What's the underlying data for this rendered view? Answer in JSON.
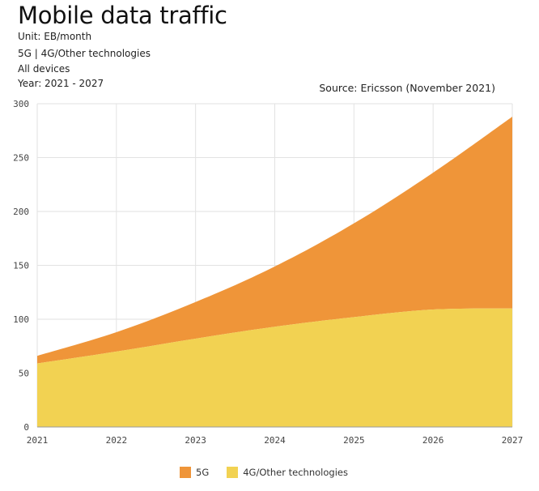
{
  "header": {
    "title": "Mobile data traffic",
    "unit": "Unit: EB/month",
    "series_line": "5G | 4G/Other technologies",
    "devices": "All devices",
    "years": "Year: 2021 - 2027",
    "source": "Source: Ericsson (November 2021)"
  },
  "colors": {
    "5G": "#ef9539",
    "4G": "#f2d252",
    "grid": "#e2e2e2"
  },
  "chart_data": {
    "type": "area",
    "stacked": true,
    "x": [
      2021,
      2022,
      2023,
      2024,
      2025,
      2026,
      2027
    ],
    "series": [
      {
        "name": "4G/Other technologies",
        "values": [
          59,
          70,
          82,
          93,
          102,
          109,
          110
        ]
      },
      {
        "name": "5G",
        "values": [
          7,
          18,
          34,
          56,
          87,
          127,
          178
        ]
      }
    ],
    "totals": [
      66,
      88,
      116,
      149,
      189,
      236,
      288
    ],
    "ylim": [
      0,
      300
    ],
    "yticks": [
      0,
      50,
      100,
      150,
      200,
      250,
      300
    ],
    "grid": true,
    "legend_position": "bottom"
  },
  "legend": {
    "items": [
      {
        "label": "5G"
      },
      {
        "label": "4G/Other technologies"
      }
    ]
  }
}
